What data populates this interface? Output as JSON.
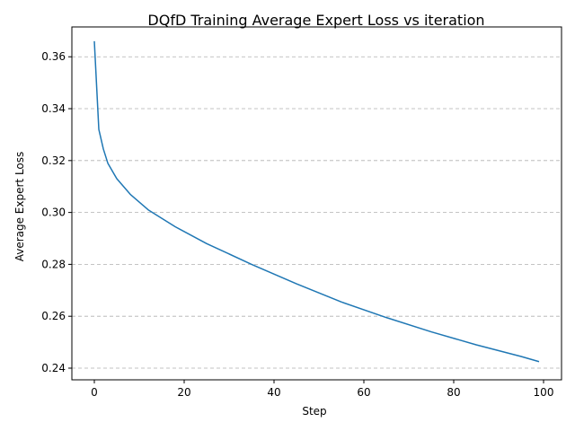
{
  "chart_data": {
    "type": "line",
    "title": "DQfD Training Average Expert Loss vs iteration",
    "xlabel": "Step",
    "ylabel": "Average Expert Loss",
    "xlim": [
      -5,
      104
    ],
    "ylim": [
      0.2355,
      0.3715
    ],
    "xticks": [
      0,
      20,
      40,
      60,
      80,
      100
    ],
    "xtick_labels": [
      "0",
      "20",
      "40",
      "60",
      "80",
      "100"
    ],
    "yticks": [
      0.24,
      0.26,
      0.28,
      0.3,
      0.32,
      0.34,
      0.36
    ],
    "ytick_labels": [
      "0.24",
      "0.26",
      "0.28",
      "0.30",
      "0.32",
      "0.34",
      "0.36"
    ],
    "grid": "y-dashed",
    "line_color": "#1f77b4",
    "series": [
      {
        "x": [
          0,
          1,
          2,
          3,
          5,
          8,
          12,
          18,
          25,
          35,
          45,
          55,
          65,
          75,
          85,
          95,
          99
        ],
        "y": [
          0.366,
          0.332,
          0.3245,
          0.319,
          0.313,
          0.307,
          0.301,
          0.2945,
          0.288,
          0.28,
          0.2725,
          0.2655,
          0.2595,
          0.254,
          0.249,
          0.2445,
          0.2425
        ]
      }
    ]
  }
}
